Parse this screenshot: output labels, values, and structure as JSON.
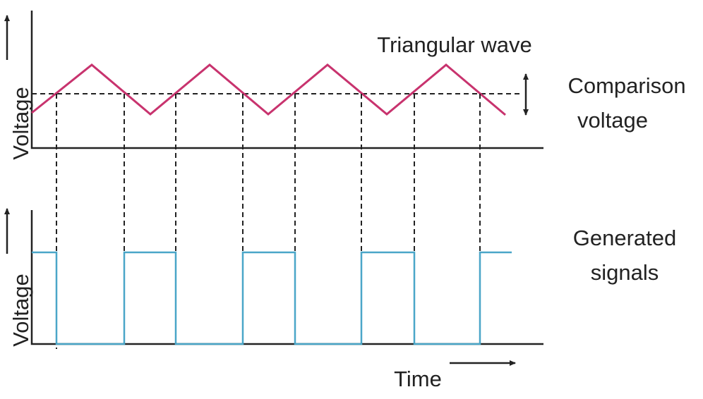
{
  "labels": {
    "triangular_wave": "Triangular wave",
    "comparison_voltage": [
      "Comparison",
      "voltage"
    ],
    "generated_signals": [
      "Generated",
      "signals"
    ],
    "top_axis": "Voltage",
    "bottom_axis": "Voltage",
    "time": "Time"
  }
}
